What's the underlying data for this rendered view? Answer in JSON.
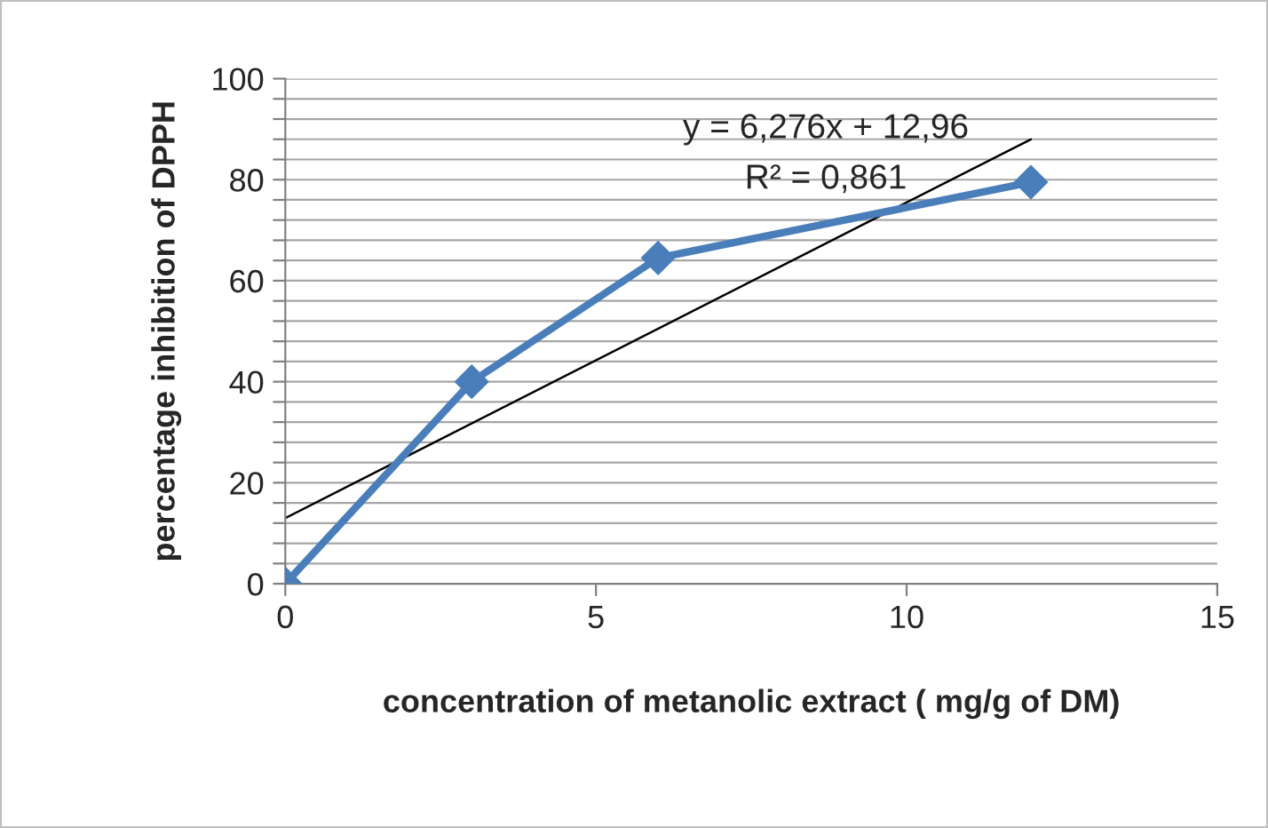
{
  "chart_data": {
    "type": "line",
    "xlabel": "concentration of metanolic extract ( mg/g of DM)",
    "ylabel": "percentage inhibition of DPPH",
    "x": [
      0,
      3,
      6,
      12
    ],
    "series": [
      {
        "color": "#4a7ebb",
        "values": [
          0,
          40,
          64.5,
          79.5
        ],
        "marker": "diamond"
      },
      {
        "color": "#000000",
        "x": [
          0,
          12
        ],
        "values": [
          13,
          88
        ],
        "marker": "none"
      }
    ],
    "annotations": [
      "y = 6,276x + 12,96",
      "R² = 0,861"
    ],
    "xlim": [
      0,
      15
    ],
    "xticks": [
      0,
      5,
      10,
      15
    ],
    "ylim": [
      0,
      100
    ],
    "yticks": [
      0,
      {
        "value": 4,
        "label": null
      },
      {
        "value": 8,
        "label": null
      },
      {
        "value": 12,
        "label": null
      },
      {
        "value": 16,
        "label": null
      },
      20,
      {
        "value": 24,
        "label": null
      },
      {
        "value": 28,
        "label": null
      },
      {
        "value": 32,
        "label": null
      },
      {
        "value": 36,
        "label": null
      },
      40,
      {
        "value": 44,
        "label": null
      },
      {
        "value": 48,
        "label": null
      },
      {
        "value": 52,
        "label": null
      },
      {
        "value": 56,
        "label": null
      },
      60,
      {
        "value": 64,
        "label": null
      },
      {
        "value": 68,
        "label": null
      },
      {
        "value": 72,
        "label": null
      },
      {
        "value": 76,
        "label": null
      },
      80,
      {
        "value": 84,
        "label": null
      },
      {
        "value": 88,
        "label": null
      },
      {
        "value": 92,
        "label": null
      },
      {
        "value": 96,
        "label": null
      },
      100
    ],
    "grid": "y",
    "legend": false
  }
}
